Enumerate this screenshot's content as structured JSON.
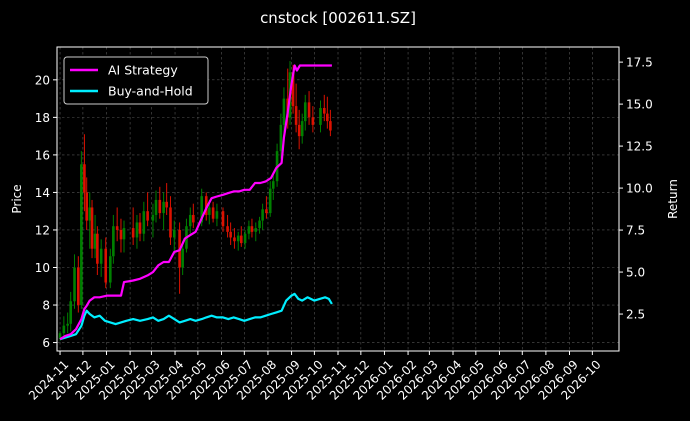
{
  "chart_data": {
    "type": "line",
    "title": "cnstock [002611.SZ]",
    "xlabel": "",
    "ylabel_left": "Price",
    "ylabel_right": "Return",
    "x_ticks": [
      "2024-11",
      "2024-12",
      "2025-01",
      "2025-02",
      "2025-03",
      "2025-04",
      "2025-05",
      "2025-06",
      "2025-07",
      "2025-08",
      "2025-09",
      "2025-10",
      "2025-11",
      "2025-12",
      "2026-01",
      "2026-02",
      "2026-03",
      "2026-04",
      "2026-05",
      "2026-06",
      "2026-07",
      "2026-08",
      "2026-09",
      "2026-10"
    ],
    "y_left_ticks": [
      "6",
      "8",
      "10",
      "12",
      "14",
      "16",
      "18",
      "20"
    ],
    "y_left_range": [
      5.55,
      21.75
    ],
    "y_right_ticks": [
      "2.5",
      "5.0",
      "7.5",
      "10.0",
      "12.5",
      "15.0",
      "17.5"
    ],
    "y_right_range": [
      0.3,
      18.4
    ],
    "x_range": [
      "2024-10-28",
      "2026-11-05"
    ],
    "grid": true,
    "legend_position": "top-left",
    "colors": {
      "background": "#000000",
      "ai_strategy": "#ff00ff",
      "buy_and_hold": "#00eeff",
      "candle_up": "#008000",
      "candle_down": "#dd1100",
      "grid": "#555555",
      "axis": "#ffffff"
    },
    "series": [
      {
        "name": "AI Strategy",
        "axis": "right",
        "points": [
          [
            "2024-11-01",
            1.0
          ],
          [
            "2024-11-08",
            1.2
          ],
          [
            "2024-11-15",
            1.3
          ],
          [
            "2024-11-22",
            1.6
          ],
          [
            "2024-11-29",
            2.2
          ],
          [
            "2024-12-03",
            2.8
          ],
          [
            "2024-12-06",
            3.0
          ],
          [
            "2024-12-10",
            3.3
          ],
          [
            "2024-12-16",
            3.5
          ],
          [
            "2024-12-23",
            3.5
          ],
          [
            "2025-01-02",
            3.6
          ],
          [
            "2025-01-10",
            3.6
          ],
          [
            "2025-01-20",
            3.6
          ],
          [
            "2025-01-24",
            4.4
          ],
          [
            "2025-02-05",
            4.5
          ],
          [
            "2025-02-14",
            4.6
          ],
          [
            "2025-02-24",
            4.8
          ],
          [
            "2025-03-03",
            5.0
          ],
          [
            "2025-03-10",
            5.4
          ],
          [
            "2025-03-17",
            5.6
          ],
          [
            "2025-03-24",
            5.6
          ],
          [
            "2025-03-31",
            6.2
          ],
          [
            "2025-04-07",
            6.3
          ],
          [
            "2025-04-14",
            7.0
          ],
          [
            "2025-04-21",
            7.2
          ],
          [
            "2025-04-28",
            7.4
          ],
          [
            "2025-05-06",
            8.2
          ],
          [
            "2025-05-12",
            8.8
          ],
          [
            "2025-05-19",
            9.4
          ],
          [
            "2025-05-26",
            9.5
          ],
          [
            "2025-06-03",
            9.6
          ],
          [
            "2025-06-10",
            9.7
          ],
          [
            "2025-06-17",
            9.8
          ],
          [
            "2025-06-24",
            9.8
          ],
          [
            "2025-07-01",
            9.9
          ],
          [
            "2025-07-08",
            9.9
          ],
          [
            "2025-07-15",
            10.3
          ],
          [
            "2025-07-22",
            10.3
          ],
          [
            "2025-07-29",
            10.4
          ],
          [
            "2025-08-05",
            10.6
          ],
          [
            "2025-08-12",
            11.2
          ],
          [
            "2025-08-19",
            11.5
          ],
          [
            "2025-08-22",
            13.0
          ],
          [
            "2025-08-27",
            14.5
          ],
          [
            "2025-09-01",
            16.2
          ],
          [
            "2025-09-05",
            17.3
          ],
          [
            "2025-09-08",
            17.0
          ],
          [
            "2025-09-12",
            17.3
          ],
          [
            "2025-09-20",
            17.3
          ],
          [
            "2025-10-01",
            17.3
          ],
          [
            "2025-10-15",
            17.3
          ],
          [
            "2025-10-24",
            17.3
          ]
        ]
      },
      {
        "name": "Buy-and-Hold",
        "axis": "right",
        "points": [
          [
            "2024-11-01",
            1.0
          ],
          [
            "2024-11-08",
            1.1
          ],
          [
            "2024-11-15",
            1.2
          ],
          [
            "2024-11-22",
            1.3
          ],
          [
            "2024-11-29",
            1.8
          ],
          [
            "2024-12-03",
            2.4
          ],
          [
            "2024-12-06",
            2.7
          ],
          [
            "2024-12-10",
            2.5
          ],
          [
            "2024-12-16",
            2.3
          ],
          [
            "2024-12-23",
            2.4
          ],
          [
            "2024-12-30",
            2.1
          ],
          [
            "2025-01-06",
            2.0
          ],
          [
            "2025-01-13",
            1.9
          ],
          [
            "2025-01-20",
            2.0
          ],
          [
            "2025-01-27",
            2.1
          ],
          [
            "2025-02-05",
            2.2
          ],
          [
            "2025-02-14",
            2.1
          ],
          [
            "2025-02-24",
            2.2
          ],
          [
            "2025-03-03",
            2.3
          ],
          [
            "2025-03-10",
            2.1
          ],
          [
            "2025-03-17",
            2.2
          ],
          [
            "2025-03-24",
            2.4
          ],
          [
            "2025-03-31",
            2.2
          ],
          [
            "2025-04-07",
            2.0
          ],
          [
            "2025-04-14",
            2.1
          ],
          [
            "2025-04-21",
            2.2
          ],
          [
            "2025-04-28",
            2.1
          ],
          [
            "2025-05-06",
            2.2
          ],
          [
            "2025-05-12",
            2.3
          ],
          [
            "2025-05-19",
            2.4
          ],
          [
            "2025-05-26",
            2.3
          ],
          [
            "2025-06-03",
            2.3
          ],
          [
            "2025-06-10",
            2.2
          ],
          [
            "2025-06-17",
            2.3
          ],
          [
            "2025-06-24",
            2.2
          ],
          [
            "2025-07-01",
            2.1
          ],
          [
            "2025-07-08",
            2.2
          ],
          [
            "2025-07-15",
            2.3
          ],
          [
            "2025-07-22",
            2.3
          ],
          [
            "2025-07-29",
            2.4
          ],
          [
            "2025-08-05",
            2.5
          ],
          [
            "2025-08-12",
            2.6
          ],
          [
            "2025-08-19",
            2.7
          ],
          [
            "2025-08-25",
            3.3
          ],
          [
            "2025-09-01",
            3.6
          ],
          [
            "2025-09-05",
            3.7
          ],
          [
            "2025-09-10",
            3.4
          ],
          [
            "2025-09-15",
            3.3
          ],
          [
            "2025-09-22",
            3.5
          ],
          [
            "2025-10-01",
            3.3
          ],
          [
            "2025-10-08",
            3.4
          ],
          [
            "2025-10-15",
            3.5
          ],
          [
            "2025-10-20",
            3.4
          ],
          [
            "2025-10-24",
            3.1
          ]
        ]
      },
      {
        "name": "",
        "axis": "left",
        "type": "candlestick",
        "points": [
          [
            "2024-11-01",
            6.2,
            6.6,
            6.1,
            6.5
          ],
          [
            "2024-11-06",
            6.5,
            7.4,
            6.3,
            6.9
          ],
          [
            "2024-11-11",
            6.9,
            7.6,
            6.5,
            7.0
          ],
          [
            "2024-11-15",
            7.0,
            8.7,
            6.6,
            8.2
          ],
          [
            "2024-11-20",
            8.2,
            10.7,
            7.8,
            10.0
          ],
          [
            "2024-11-25",
            10.0,
            10.6,
            7.6,
            8.0
          ],
          [
            "2024-11-29",
            8.0,
            16.2,
            7.8,
            15.5
          ],
          [
            "2024-12-03",
            15.5,
            17.1,
            13.0,
            14.0
          ],
          [
            "2024-12-06",
            14.0,
            14.8,
            12.0,
            12.5
          ],
          [
            "2024-12-10",
            12.5,
            14.0,
            11.0,
            13.2
          ],
          [
            "2024-12-13",
            13.2,
            13.6,
            10.5,
            11.0
          ],
          [
            "2024-12-17",
            11.0,
            12.8,
            10.5,
            11.8
          ],
          [
            "2024-12-20",
            11.8,
            12.2,
            9.6,
            10.2
          ],
          [
            "2024-12-25",
            10.2,
            11.5,
            9.5,
            11.0
          ],
          [
            "2024-12-31",
            11.0,
            11.6,
            8.9,
            9.2
          ],
          [
            "2025-01-06",
            9.2,
            11.0,
            8.9,
            10.6
          ],
          [
            "2025-01-10",
            10.6,
            12.8,
            10.2,
            12.2
          ],
          [
            "2025-01-15",
            12.2,
            13.2,
            11.4,
            12.0
          ],
          [
            "2025-01-20",
            12.0,
            12.6,
            10.8,
            11.5
          ],
          [
            "2025-01-24",
            11.5,
            12.5,
            10.8,
            12.1
          ],
          [
            "2025-02-05",
            12.1,
            13.2,
            11.2,
            11.6
          ],
          [
            "2025-02-10",
            11.6,
            12.8,
            11.0,
            12.4
          ],
          [
            "2025-02-14",
            12.4,
            12.9,
            11.4,
            11.8
          ],
          [
            "2025-02-19",
            11.8,
            13.5,
            11.4,
            13.0
          ],
          [
            "2025-02-24",
            13.0,
            14.0,
            12.2,
            12.5
          ],
          [
            "2025-03-03",
            12.5,
            13.4,
            11.6,
            12.8
          ],
          [
            "2025-03-07",
            12.8,
            14.1,
            12.4,
            13.6
          ],
          [
            "2025-03-12",
            13.6,
            14.3,
            12.6,
            12.9
          ],
          [
            "2025-03-17",
            12.9,
            14.0,
            12.0,
            13.5
          ],
          [
            "2025-03-21",
            13.5,
            14.5,
            12.8,
            13.2
          ],
          [
            "2025-03-26",
            13.2,
            13.8,
            11.2,
            11.6
          ],
          [
            "2025-03-31",
            11.6,
            12.5,
            10.8,
            12.0
          ],
          [
            "2025-04-07",
            12.0,
            12.4,
            8.6,
            10.0
          ],
          [
            "2025-04-11",
            10.0,
            11.4,
            9.6,
            11.0
          ],
          [
            "2025-04-16",
            11.0,
            12.6,
            10.8,
            12.2
          ],
          [
            "2025-04-21",
            12.2,
            13.2,
            11.8,
            12.8
          ],
          [
            "2025-04-25",
            12.8,
            13.4,
            12.1,
            12.4
          ],
          [
            "2025-05-06",
            12.4,
            14.2,
            12.2,
            13.8
          ],
          [
            "2025-05-12",
            13.8,
            14.0,
            12.5,
            12.8
          ],
          [
            "2025-05-16",
            12.8,
            13.6,
            12.3,
            13.2
          ],
          [
            "2025-05-21",
            13.2,
            13.5,
            12.4,
            12.6
          ],
          [
            "2025-05-26",
            12.6,
            13.4,
            12.2,
            13.0
          ],
          [
            "2025-06-03",
            13.0,
            13.2,
            11.9,
            12.2
          ],
          [
            "2025-06-09",
            12.2,
            12.8,
            11.6,
            11.9
          ],
          [
            "2025-06-13",
            11.9,
            12.4,
            11.2,
            11.6
          ],
          [
            "2025-06-18",
            11.6,
            12.1,
            11.0,
            11.4
          ],
          [
            "2025-06-23",
            11.4,
            11.9,
            10.9,
            11.7
          ],
          [
            "2025-06-27",
            11.7,
            12.2,
            11.1,
            11.3
          ],
          [
            "2025-07-02",
            11.3,
            12.0,
            11.0,
            11.8
          ],
          [
            "2025-07-07",
            11.8,
            12.5,
            11.5,
            12.2
          ],
          [
            "2025-07-11",
            12.2,
            12.6,
            11.6,
            11.9
          ],
          [
            "2025-07-16",
            11.9,
            12.4,
            11.4,
            12.1
          ],
          [
            "2025-07-21",
            12.1,
            12.7,
            11.8,
            12.5
          ],
          [
            "2025-07-25",
            12.5,
            13.4,
            12.0,
            13.1
          ],
          [
            "2025-07-30",
            13.1,
            13.8,
            12.6,
            12.9
          ],
          [
            "2025-08-04",
            12.9,
            14.6,
            12.7,
            14.2
          ],
          [
            "2025-08-08",
            14.2,
            15.0,
            13.6,
            14.6
          ],
          [
            "2025-08-13",
            14.6,
            16.6,
            14.3,
            16.2
          ],
          [
            "2025-08-18",
            16.2,
            18.2,
            15.8,
            17.6
          ],
          [
            "2025-08-22",
            17.6,
            19.6,
            17.0,
            19.0
          ],
          [
            "2025-08-27",
            19.0,
            20.6,
            17.4,
            18.0
          ],
          [
            "2025-08-30",
            18.0,
            21.0,
            17.6,
            20.4
          ],
          [
            "2025-09-03",
            20.4,
            20.8,
            18.2,
            18.6
          ],
          [
            "2025-09-07",
            18.6,
            19.8,
            17.2,
            17.6
          ],
          [
            "2025-09-11",
            17.6,
            18.4,
            16.3,
            17.0
          ],
          [
            "2025-09-15",
            17.0,
            18.2,
            16.6,
            17.8
          ],
          [
            "2025-09-19",
            17.8,
            19.2,
            17.3,
            18.8
          ],
          [
            "2025-09-24",
            18.8,
            19.4,
            17.6,
            18.0
          ],
          [
            "2025-09-29",
            18.0,
            18.6,
            17.2,
            17.6
          ],
          [
            "2025-10-09",
            17.6,
            18.9,
            17.2,
            18.5
          ],
          [
            "2025-10-14",
            18.5,
            19.2,
            17.8,
            18.2
          ],
          [
            "2025-10-18",
            18.2,
            19.1,
            17.4,
            17.8
          ],
          [
            "2025-10-22",
            17.8,
            18.4,
            17.0,
            17.3
          ]
        ]
      }
    ]
  }
}
